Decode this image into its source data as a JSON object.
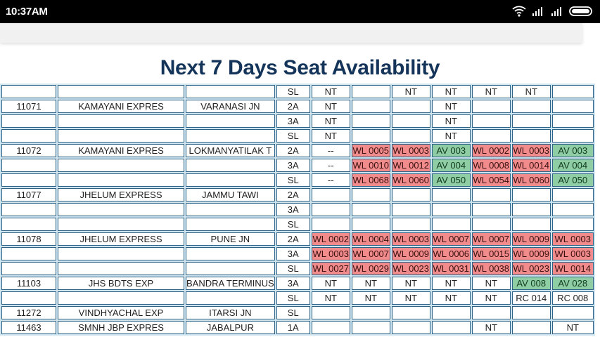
{
  "status_bar": {
    "time": "10:37AM",
    "icons": [
      "wifi-icon",
      "signal-icon",
      "signal-icon",
      "battery-icon"
    ]
  },
  "page": {
    "title": "Next 7 Days Seat Availability"
  },
  "colors": {
    "waitlist": "#f28c8c",
    "available": "#8fcea4",
    "border": "#2e6285",
    "title": "#15345a"
  },
  "rows": [
    {
      "train": "",
      "name": "",
      "station": "",
      "cls": "SL",
      "days": [
        "NT",
        "",
        "NT",
        "NT",
        "NT",
        "NT",
        ""
      ]
    },
    {
      "train": "11071",
      "name": "KAMAYANI EXPRES",
      "station": "VARANASI JN",
      "cls": "2A",
      "days": [
        "NT",
        "",
        "",
        "NT",
        "",
        "",
        ""
      ]
    },
    {
      "train": "",
      "name": "",
      "station": "",
      "cls": "3A",
      "days": [
        "NT",
        "",
        "",
        "NT",
        "",
        "",
        ""
      ]
    },
    {
      "train": "",
      "name": "",
      "station": "",
      "cls": "SL",
      "days": [
        "NT",
        "",
        "",
        "NT",
        "",
        "",
        ""
      ]
    },
    {
      "train": "11072",
      "name": "KAMAYANI EXPRES",
      "station": "LOKMANYATILAK T",
      "cls": "2A",
      "days": [
        "--",
        "WL 0005",
        "WL 0003",
        "AV 003",
        "WL 0002",
        "WL 0003",
        "AV 003"
      ]
    },
    {
      "train": "",
      "name": "",
      "station": "",
      "cls": "3A",
      "days": [
        "--",
        "WL 0010",
        "WL 0012",
        "AV 004",
        "WL 0008",
        "WL 0014",
        "AV 004"
      ]
    },
    {
      "train": "",
      "name": "",
      "station": "",
      "cls": "SL",
      "days": [
        "--",
        "WL 0068",
        "WL 0060",
        "AV 050",
        "WL 0054",
        "WL 0060",
        "AV 050"
      ]
    },
    {
      "train": "11077",
      "name": "JHELUM EXPRESS",
      "station": "JAMMU TAWI",
      "cls": "2A",
      "days": [
        "",
        "",
        "",
        "",
        "",
        "",
        ""
      ]
    },
    {
      "train": "",
      "name": "",
      "station": "",
      "cls": "3A",
      "days": [
        "",
        "",
        "",
        "",
        "",
        "",
        ""
      ]
    },
    {
      "train": "",
      "name": "",
      "station": "",
      "cls": "SL",
      "days": [
        "",
        "",
        "",
        "",
        "",
        "",
        ""
      ]
    },
    {
      "train": "11078",
      "name": "JHELUM EXPRESS",
      "station": "PUNE JN",
      "cls": "2A",
      "days": [
        "WL 0002",
        "WL 0004",
        "WL 0003",
        "WL 0007",
        "WL 0007",
        "WL 0009",
        "WL 0003"
      ]
    },
    {
      "train": "",
      "name": "",
      "station": "",
      "cls": "3A",
      "days": [
        "WL 0003",
        "WL 0007",
        "WL 0009",
        "WL 0006",
        "WL 0015",
        "WL 0009",
        "WL 0003"
      ]
    },
    {
      "train": "",
      "name": "",
      "station": "",
      "cls": "SL",
      "days": [
        "WL 0027",
        "WL 0029",
        "WL 0023",
        "WL 0031",
        "WL 0038",
        "WL 0023",
        "WL 0014"
      ]
    },
    {
      "train": "11103",
      "name": "JHS BDTS EXP",
      "station": "BANDRA TERMINUS",
      "cls": "3A",
      "days": [
        "NT",
        "NT",
        "NT",
        "NT",
        "NT",
        "AV 008",
        "AV 028"
      ]
    },
    {
      "train": "",
      "name": "",
      "station": "",
      "cls": "SL",
      "days": [
        "NT",
        "NT",
        "NT",
        "NT",
        "NT",
        "RC 014",
        "RC 008"
      ]
    },
    {
      "train": "11272",
      "name": "VINDHYACHAL EXP",
      "station": "ITARSI JN",
      "cls": "SL",
      "days": [
        "",
        "",
        "",
        "",
        "",
        "",
        ""
      ]
    },
    {
      "train": "11463",
      "name": "SMNH JBP EXPRES",
      "station": "JABALPUR",
      "cls": "1A",
      "days": [
        "",
        "",
        "",
        "",
        "NT",
        "",
        "NT"
      ]
    }
  ]
}
